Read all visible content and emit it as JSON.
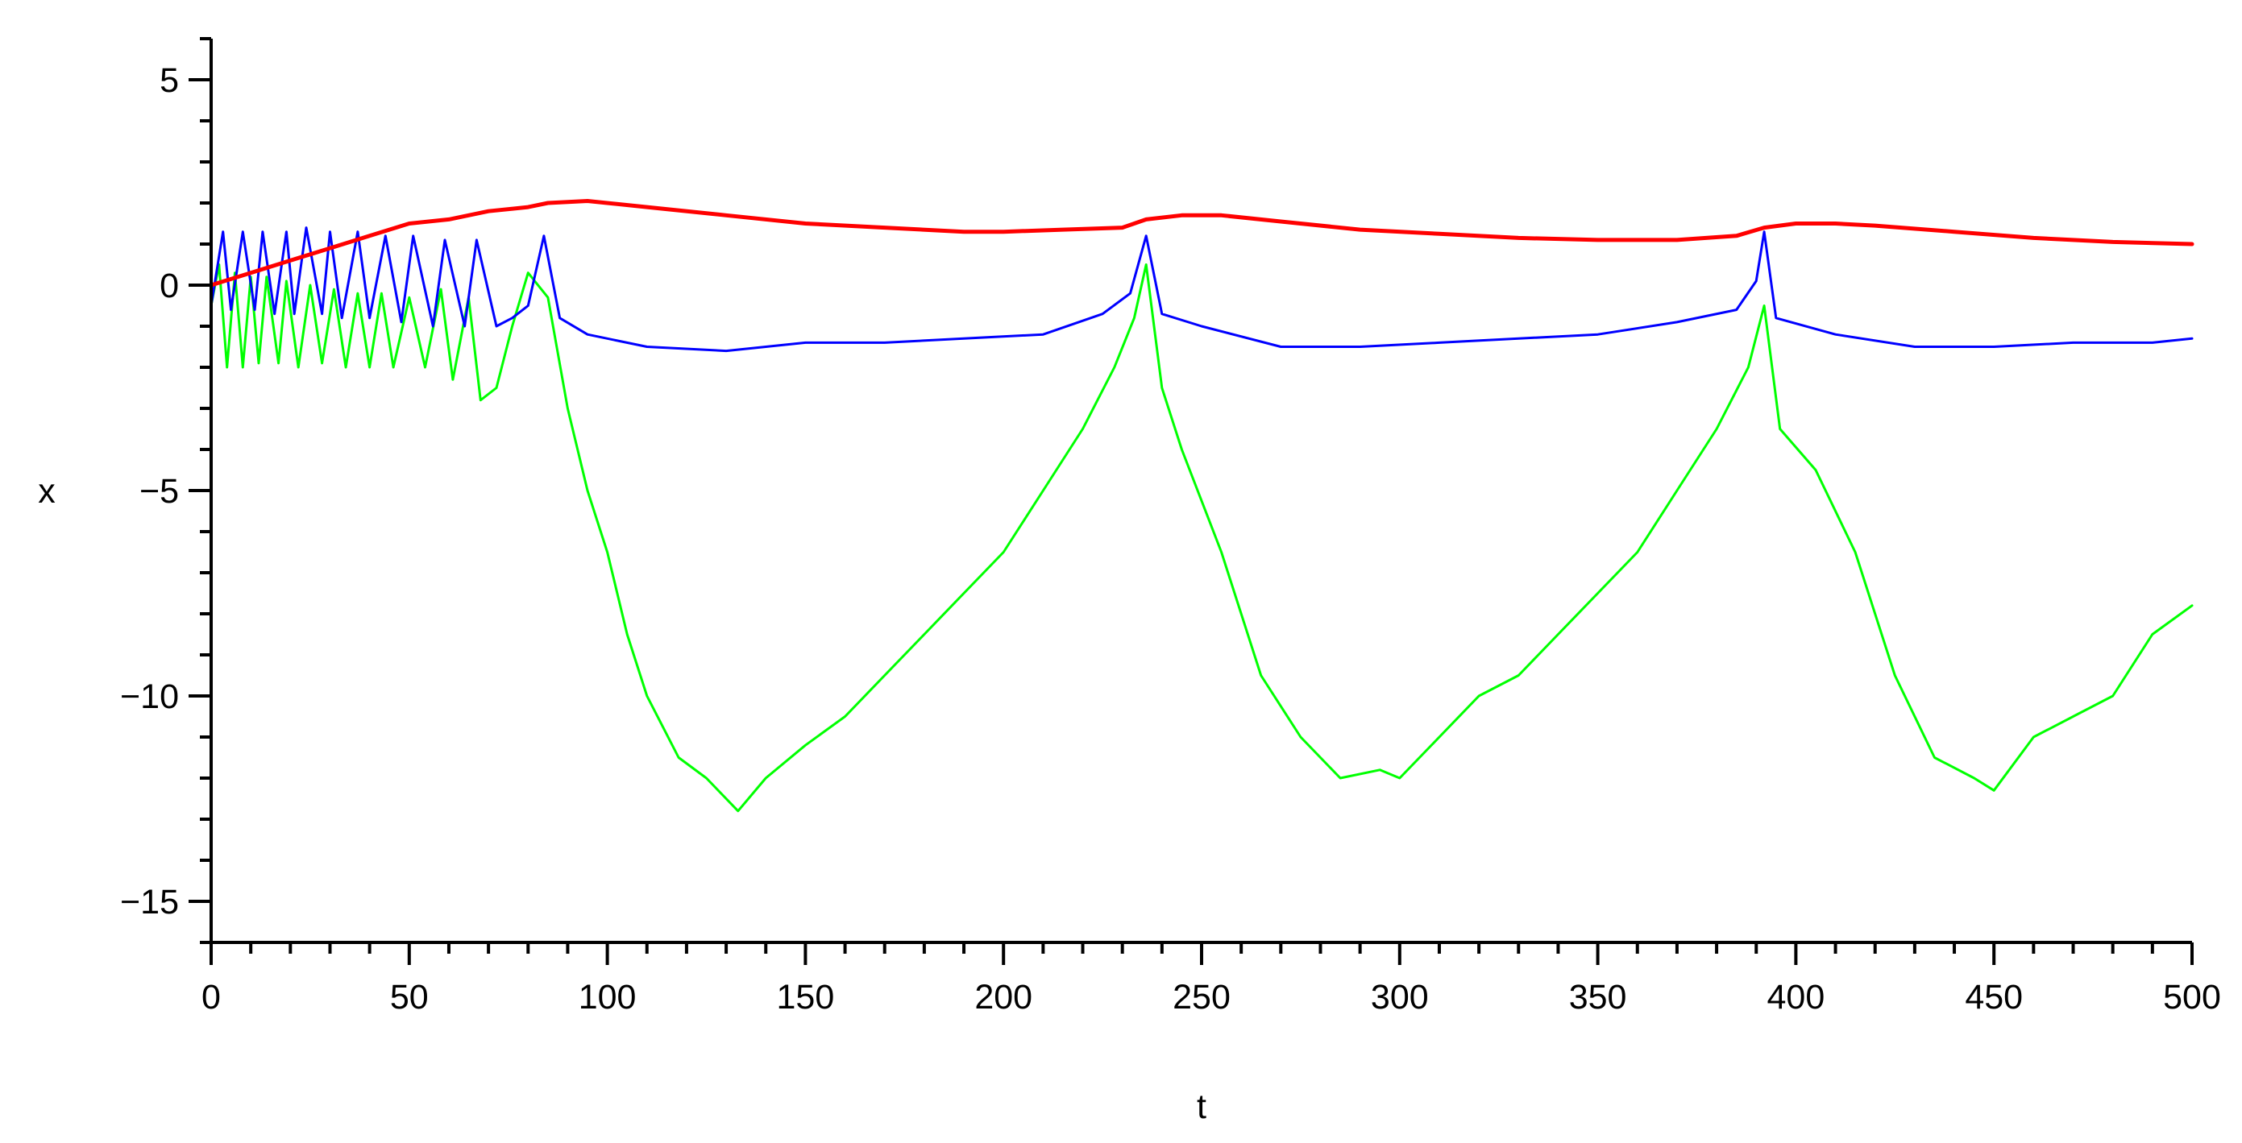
{
  "chart_data": {
    "type": "line",
    "title": "",
    "xlabel": "t",
    "ylabel": "x",
    "xlim": [
      0,
      500
    ],
    "ylim": [
      -16,
      6
    ],
    "xticks": [
      0,
      50,
      100,
      150,
      200,
      250,
      300,
      350,
      400,
      450,
      500
    ],
    "yticks": [
      5,
      0,
      -5,
      -10,
      -15
    ],
    "ytick_labels": [
      "5",
      "0",
      "−5",
      "−10",
      "−15"
    ],
    "grid": false,
    "legend": "none",
    "series": [
      {
        "color": "#ff0000",
        "x": [
          0,
          10,
          20,
          30,
          40,
          50,
          60,
          70,
          80,
          85,
          95,
          110,
          130,
          150,
          170,
          190,
          200,
          215,
          230,
          236,
          245,
          255,
          270,
          290,
          310,
          330,
          350,
          370,
          385,
          392,
          400,
          410,
          420,
          440,
          460,
          480,
          500
        ],
        "y": [
          0,
          0.3,
          0.6,
          0.9,
          1.2,
          1.5,
          1.6,
          1.8,
          1.9,
          2.0,
          2.05,
          1.9,
          1.7,
          1.5,
          1.4,
          1.3,
          1.3,
          1.35,
          1.4,
          1.6,
          1.7,
          1.7,
          1.55,
          1.35,
          1.25,
          1.15,
          1.1,
          1.1,
          1.2,
          1.4,
          1.5,
          1.5,
          1.45,
          1.3,
          1.15,
          1.05,
          1.0
        ]
      },
      {
        "color": "#0000ff",
        "x": [
          0,
          3,
          5,
          8,
          11,
          13,
          16,
          19,
          21,
          24,
          28,
          30,
          33,
          37,
          40,
          44,
          48,
          51,
          56,
          59,
          64,
          67,
          72,
          76,
          80,
          84,
          88,
          95,
          110,
          130,
          150,
          170,
          190,
          210,
          225,
          232,
          236,
          240,
          250,
          270,
          290,
          310,
          330,
          350,
          370,
          385,
          390,
          392,
          395,
          410,
          430,
          450,
          470,
          490,
          500
        ],
        "y": [
          -0.5,
          1.3,
          -0.6,
          1.3,
          -0.6,
          1.3,
          -0.7,
          1.3,
          -0.7,
          1.4,
          -0.7,
          1.3,
          -0.8,
          1.3,
          -0.8,
          1.2,
          -0.9,
          1.2,
          -1.0,
          1.1,
          -1.0,
          1.1,
          -1.0,
          -0.8,
          -0.5,
          1.2,
          -0.8,
          -1.2,
          -1.5,
          -1.6,
          -1.4,
          -1.4,
          -1.3,
          -1.2,
          -0.7,
          -0.2,
          1.2,
          -0.7,
          -1.0,
          -1.5,
          -1.5,
          -1.4,
          -1.3,
          -1.2,
          -0.9,
          -0.6,
          0.1,
          1.3,
          -0.8,
          -1.2,
          -1.5,
          -1.5,
          -1.4,
          -1.4,
          -1.3
        ]
      },
      {
        "color": "#00ff00",
        "x": [
          0,
          2,
          4,
          6,
          8,
          10,
          12,
          14,
          17,
          19,
          22,
          25,
          28,
          31,
          34,
          37,
          40,
          43,
          46,
          50,
          54,
          58,
          61,
          65,
          68,
          72,
          76,
          80,
          85,
          90,
          95,
          100,
          105,
          110,
          118,
          125,
          133,
          140,
          150,
          160,
          170,
          180,
          190,
          200,
          210,
          220,
          228,
          233,
          236,
          240,
          245,
          255,
          265,
          275,
          285,
          295,
          300,
          310,
          320,
          330,
          340,
          350,
          360,
          370,
          380,
          388,
          392,
          396,
          405,
          415,
          425,
          435,
          445,
          450,
          460,
          470,
          480,
          490,
          500
        ],
        "y": [
          -0.5,
          0.5,
          -2.0,
          0.3,
          -2.0,
          0.2,
          -1.9,
          0.2,
          -1.9,
          0.1,
          -2.0,
          0.0,
          -1.9,
          -0.1,
          -2.0,
          -0.2,
          -2.0,
          -0.2,
          -2.0,
          -0.3,
          -2.0,
          -0.1,
          -2.3,
          -0.3,
          -2.8,
          -2.5,
          -1.0,
          0.3,
          -0.3,
          -3.0,
          -5.0,
          -6.5,
          -8.5,
          -10.0,
          -11.5,
          -12.0,
          -12.8,
          -12.0,
          -11.2,
          -10.5,
          -9.5,
          -8.5,
          -7.5,
          -6.5,
          -5.0,
          -3.5,
          -2.0,
          -0.8,
          0.5,
          -2.5,
          -4.0,
          -6.5,
          -9.5,
          -11.0,
          -12.0,
          -11.8,
          -12.0,
          -11.0,
          -10.0,
          -9.5,
          -8.5,
          -7.5,
          -6.5,
          -5.0,
          -3.5,
          -2.0,
          -0.5,
          -3.5,
          -4.5,
          -6.5,
          -9.5,
          -11.5,
          -12.0,
          -12.3,
          -11.0,
          -10.5,
          -10.0,
          -8.5,
          -7.8
        ]
      }
    ]
  }
}
